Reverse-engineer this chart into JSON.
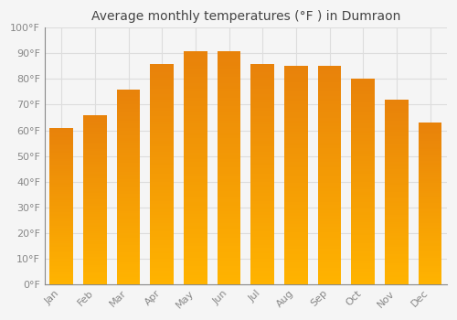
{
  "title": "Average monthly temperatures (°F ) in Dumraon",
  "months": [
    "Jan",
    "Feb",
    "Mar",
    "Apr",
    "May",
    "Jun",
    "Jul",
    "Aug",
    "Sep",
    "Oct",
    "Nov",
    "Dec"
  ],
  "values": [
    61,
    66,
    76,
    86,
    91,
    91,
    86,
    85,
    85,
    80,
    72,
    63
  ],
  "ylim": [
    0,
    100
  ],
  "yticks": [
    0,
    10,
    20,
    30,
    40,
    50,
    60,
    70,
    80,
    90,
    100
  ],
  "ytick_labels": [
    "0°F",
    "10°F",
    "20°F",
    "30°F",
    "40°F",
    "50°F",
    "60°F",
    "70°F",
    "80°F",
    "90°F",
    "100°F"
  ],
  "background_color": "#f5f5f5",
  "grid_color": "#dddddd",
  "title_fontsize": 10,
  "tick_fontsize": 8,
  "bar_color_bottom": "#FFB300",
  "bar_color_top": "#E8820A",
  "bar_width": 0.7
}
